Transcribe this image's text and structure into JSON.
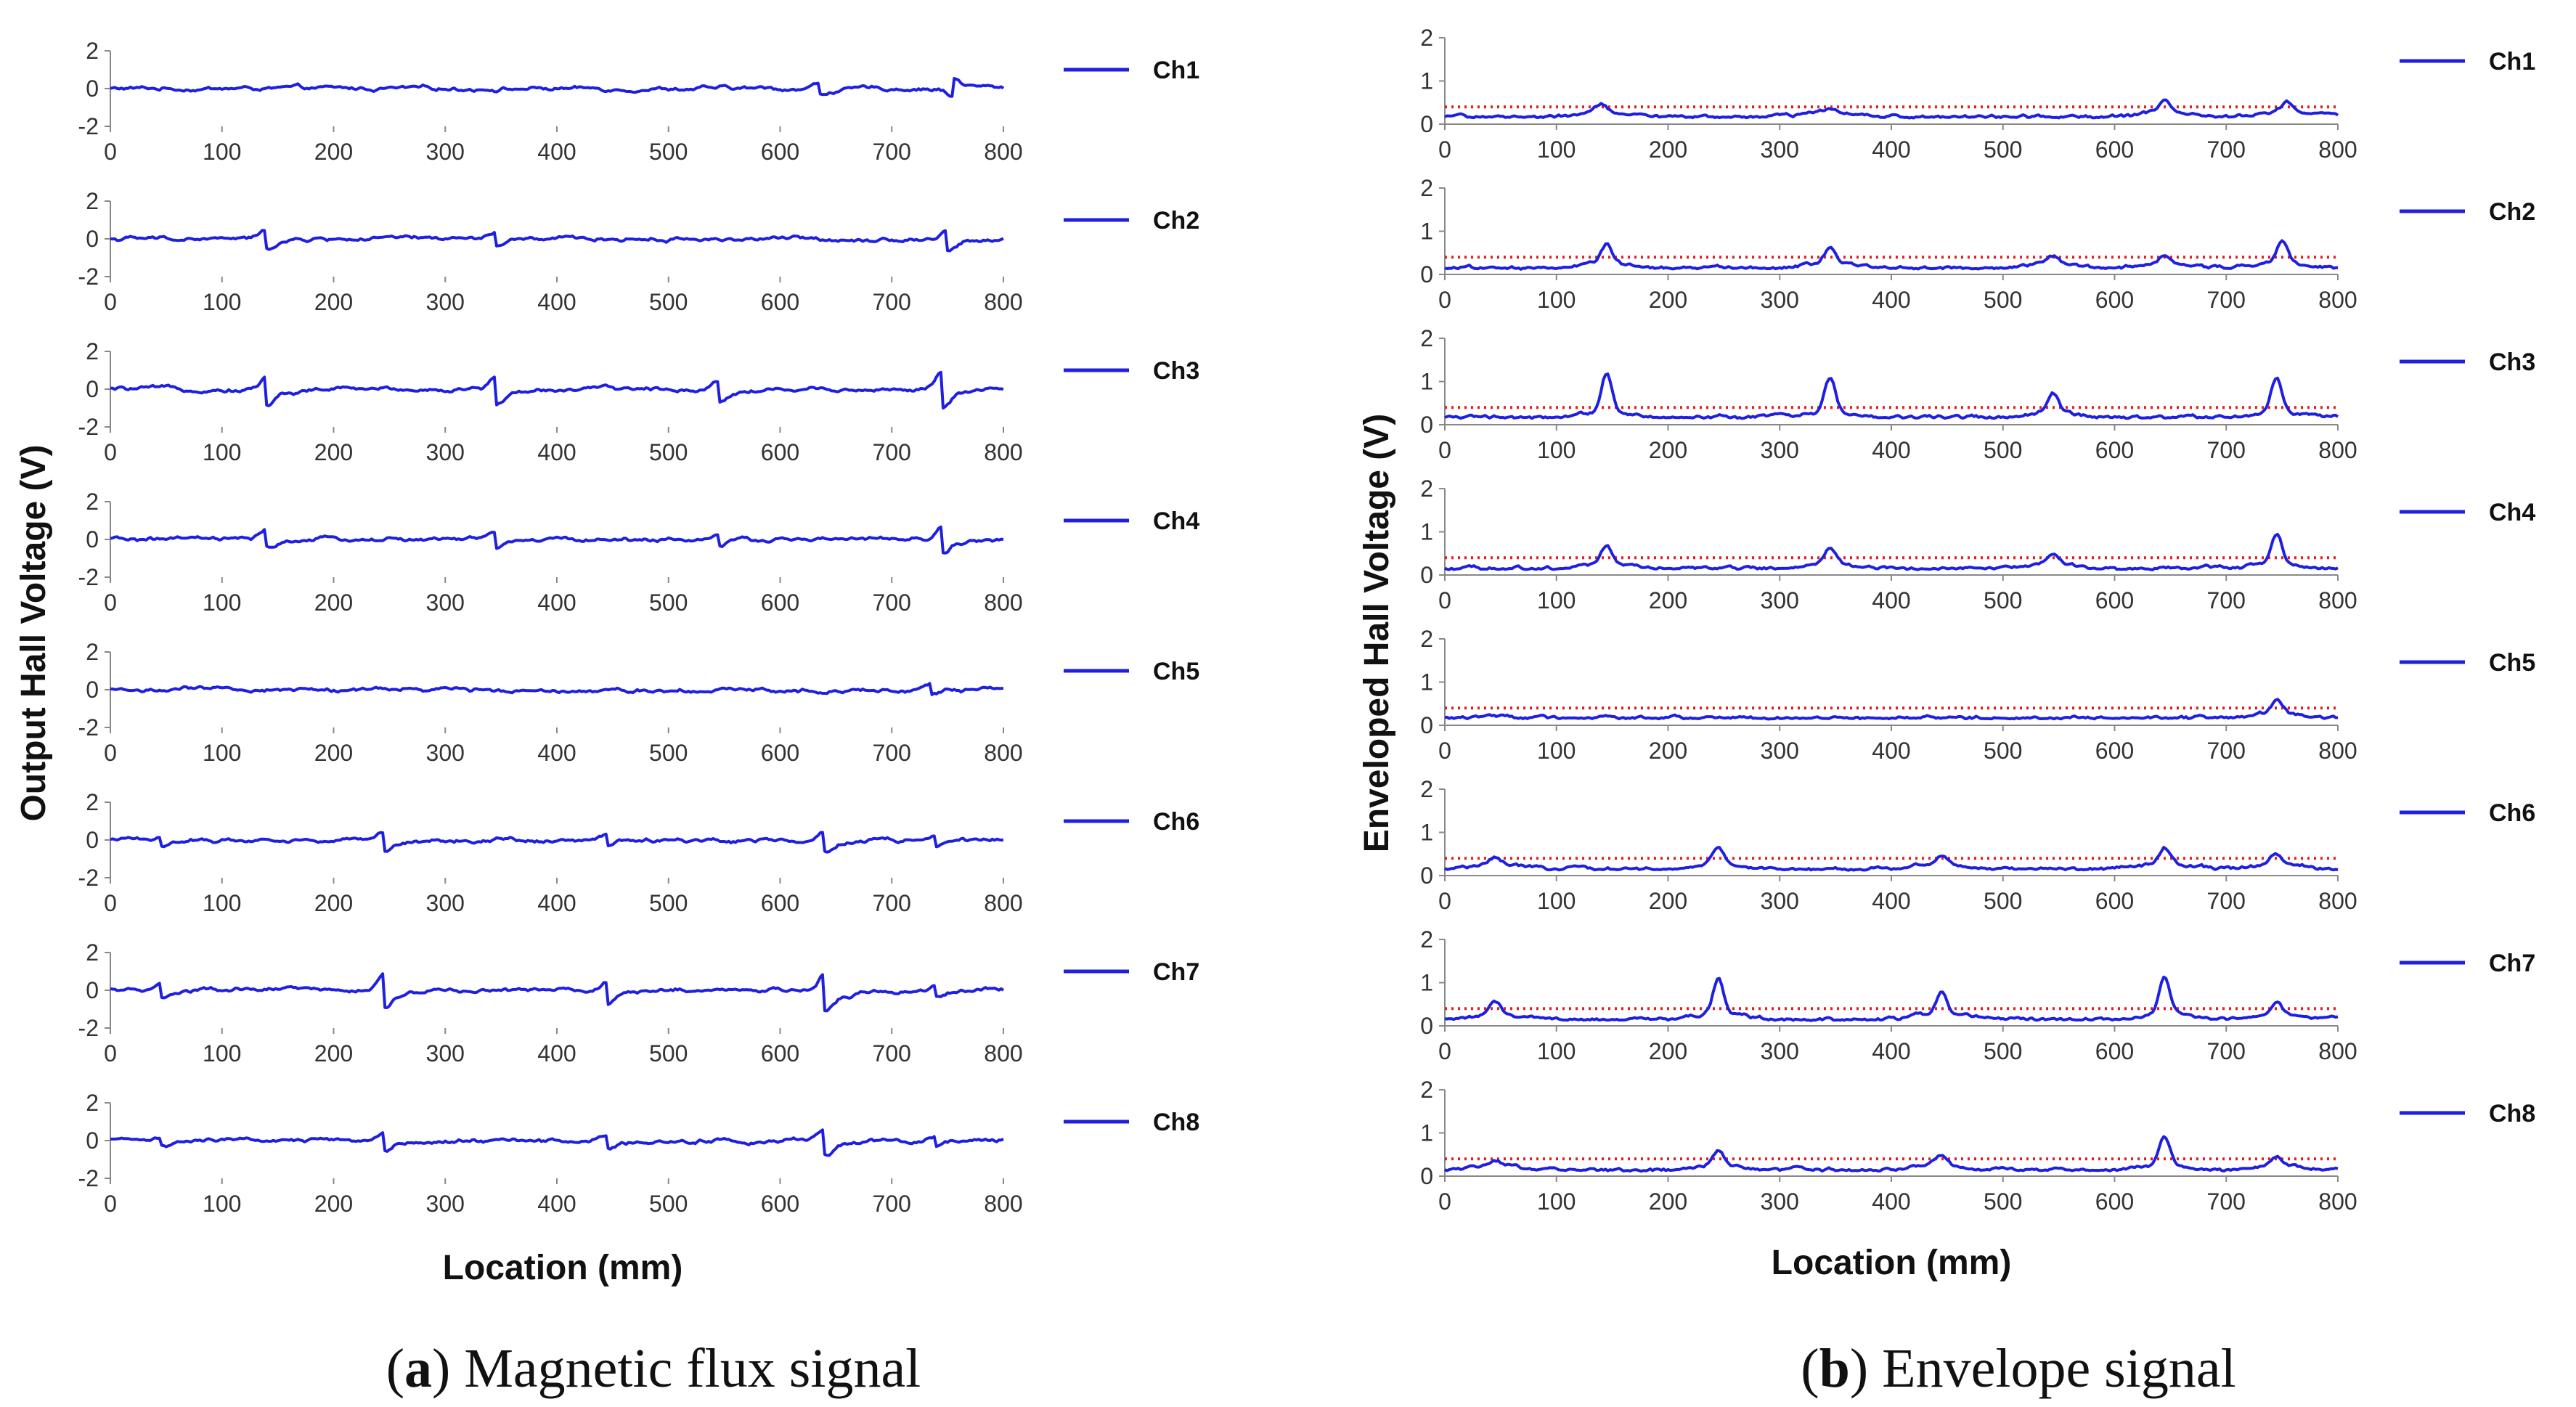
{
  "chart_data": [
    {
      "type": "line",
      "panel_tag": "a",
      "caption": "Magnetic flux signal",
      "ylabel": "Output  Hall Voltage  (V)",
      "xlabel": "Location (mm)",
      "xlim": [
        0,
        800
      ],
      "ylim": [
        -2,
        2
      ],
      "xticks": [
        "0",
        "100",
        "200",
        "300",
        "400",
        "500",
        "600",
        "700",
        "800"
      ],
      "yticks": [
        "2",
        "0",
        "-2"
      ],
      "line_color": "#1f1fe0",
      "channels": [
        {
          "name": "Ch1",
          "noise": 0.07,
          "events": [
            {
              "x": 140,
              "a": 0.0
            },
            {
              "x": 635,
              "a": 0.28
            },
            {
              "x": 755,
              "a": -0.45
            }
          ]
        },
        {
          "name": "Ch2",
          "noise": 0.07,
          "events": [
            {
              "x": 140,
              "a": 0.45
            },
            {
              "x": 345,
              "a": 0.35
            },
            {
              "x": 750,
              "a": 0.55
            }
          ]
        },
        {
          "name": "Ch3",
          "noise": 0.07,
          "events": [
            {
              "x": 140,
              "a": 0.75
            },
            {
              "x": 345,
              "a": 0.75
            },
            {
              "x": 545,
              "a": 0.55
            },
            {
              "x": 745,
              "a": 0.95
            }
          ]
        },
        {
          "name": "Ch4",
          "noise": 0.07,
          "events": [
            {
              "x": 140,
              "a": 0.45
            },
            {
              "x": 345,
              "a": 0.4
            },
            {
              "x": 545,
              "a": 0.3
            },
            {
              "x": 745,
              "a": 0.7
            }
          ]
        },
        {
          "name": "Ch5",
          "noise": 0.07,
          "events": [
            {
              "x": 735,
              "a": 0.3
            }
          ]
        },
        {
          "name": "Ch6",
          "noise": 0.07,
          "events": [
            {
              "x": 45,
              "a": 0.25
            },
            {
              "x": 245,
              "a": 0.45
            },
            {
              "x": 445,
              "a": 0.3
            },
            {
              "x": 640,
              "a": 0.5
            },
            {
              "x": 740,
              "a": 0.3
            }
          ]
        },
        {
          "name": "Ch7",
          "noise": 0.07,
          "events": [
            {
              "x": 45,
              "a": 0.35
            },
            {
              "x": 245,
              "a": 0.85
            },
            {
              "x": 445,
              "a": 0.55
            },
            {
              "x": 640,
              "a": 0.95
            },
            {
              "x": 740,
              "a": 0.3
            }
          ]
        },
        {
          "name": "Ch8",
          "noise": 0.07,
          "events": [
            {
              "x": 45,
              "a": 0.2
            },
            {
              "x": 245,
              "a": 0.45
            },
            {
              "x": 445,
              "a": 0.3
            },
            {
              "x": 640,
              "a": 0.65
            },
            {
              "x": 740,
              "a": 0.25
            }
          ]
        }
      ]
    },
    {
      "type": "line",
      "panel_tag": "b",
      "caption": "Envelope signal",
      "ylabel": "Enveloped Hall Voltage (V)",
      "xlabel": "Location (mm)",
      "xlim": [
        0,
        800
      ],
      "ylim": [
        0,
        2
      ],
      "xticks": [
        "0",
        "100",
        "200",
        "300",
        "400",
        "500",
        "600",
        "700",
        "800"
      ],
      "yticks": [
        "2",
        "1",
        "0"
      ],
      "threshold": 0.4,
      "threshold_color": "#e02020",
      "line_color": "#1f1fe0",
      "channels": [
        {
          "name": "Ch1",
          "base": 0.15,
          "peaks": [
            {
              "x": 140,
              "h": 0.3
            },
            {
              "x": 345,
              "h": 0.22
            },
            {
              "x": 645,
              "h": 0.42
            },
            {
              "x": 755,
              "h": 0.38
            }
          ]
        },
        {
          "name": "Ch2",
          "base": 0.13,
          "peaks": [
            {
              "x": 145,
              "h": 0.55
            },
            {
              "x": 345,
              "h": 0.5
            },
            {
              "x": 545,
              "h": 0.3
            },
            {
              "x": 645,
              "h": 0.3
            },
            {
              "x": 750,
              "h": 0.6
            }
          ]
        },
        {
          "name": "Ch3",
          "base": 0.15,
          "peaks": [
            {
              "x": 145,
              "h": 1.05
            },
            {
              "x": 345,
              "h": 0.95
            },
            {
              "x": 545,
              "h": 0.6
            },
            {
              "x": 745,
              "h": 0.95
            }
          ]
        },
        {
          "name": "Ch4",
          "base": 0.13,
          "peaks": [
            {
              "x": 145,
              "h": 0.55
            },
            {
              "x": 345,
              "h": 0.5
            },
            {
              "x": 545,
              "h": 0.35
            },
            {
              "x": 745,
              "h": 0.8
            }
          ]
        },
        {
          "name": "Ch5",
          "base": 0.15,
          "peaks": [
            {
              "x": 745,
              "h": 0.42
            }
          ]
        },
        {
          "name": "Ch6",
          "base": 0.13,
          "peaks": [
            {
              "x": 45,
              "h": 0.3
            },
            {
              "x": 245,
              "h": 0.45
            },
            {
              "x": 445,
              "h": 0.32
            },
            {
              "x": 645,
              "h": 0.5
            },
            {
              "x": 745,
              "h": 0.35
            }
          ]
        },
        {
          "name": "Ch7",
          "base": 0.13,
          "peaks": [
            {
              "x": 45,
              "h": 0.4
            },
            {
              "x": 245,
              "h": 0.95
            },
            {
              "x": 445,
              "h": 0.65
            },
            {
              "x": 645,
              "h": 0.95
            },
            {
              "x": 745,
              "h": 0.38
            }
          ]
        },
        {
          "name": "Ch8",
          "base": 0.12,
          "peaks": [
            {
              "x": 45,
              "h": 0.22
            },
            {
              "x": 245,
              "h": 0.45
            },
            {
              "x": 445,
              "h": 0.35
            },
            {
              "x": 645,
              "h": 0.75
            },
            {
              "x": 745,
              "h": 0.3
            }
          ]
        }
      ]
    }
  ]
}
